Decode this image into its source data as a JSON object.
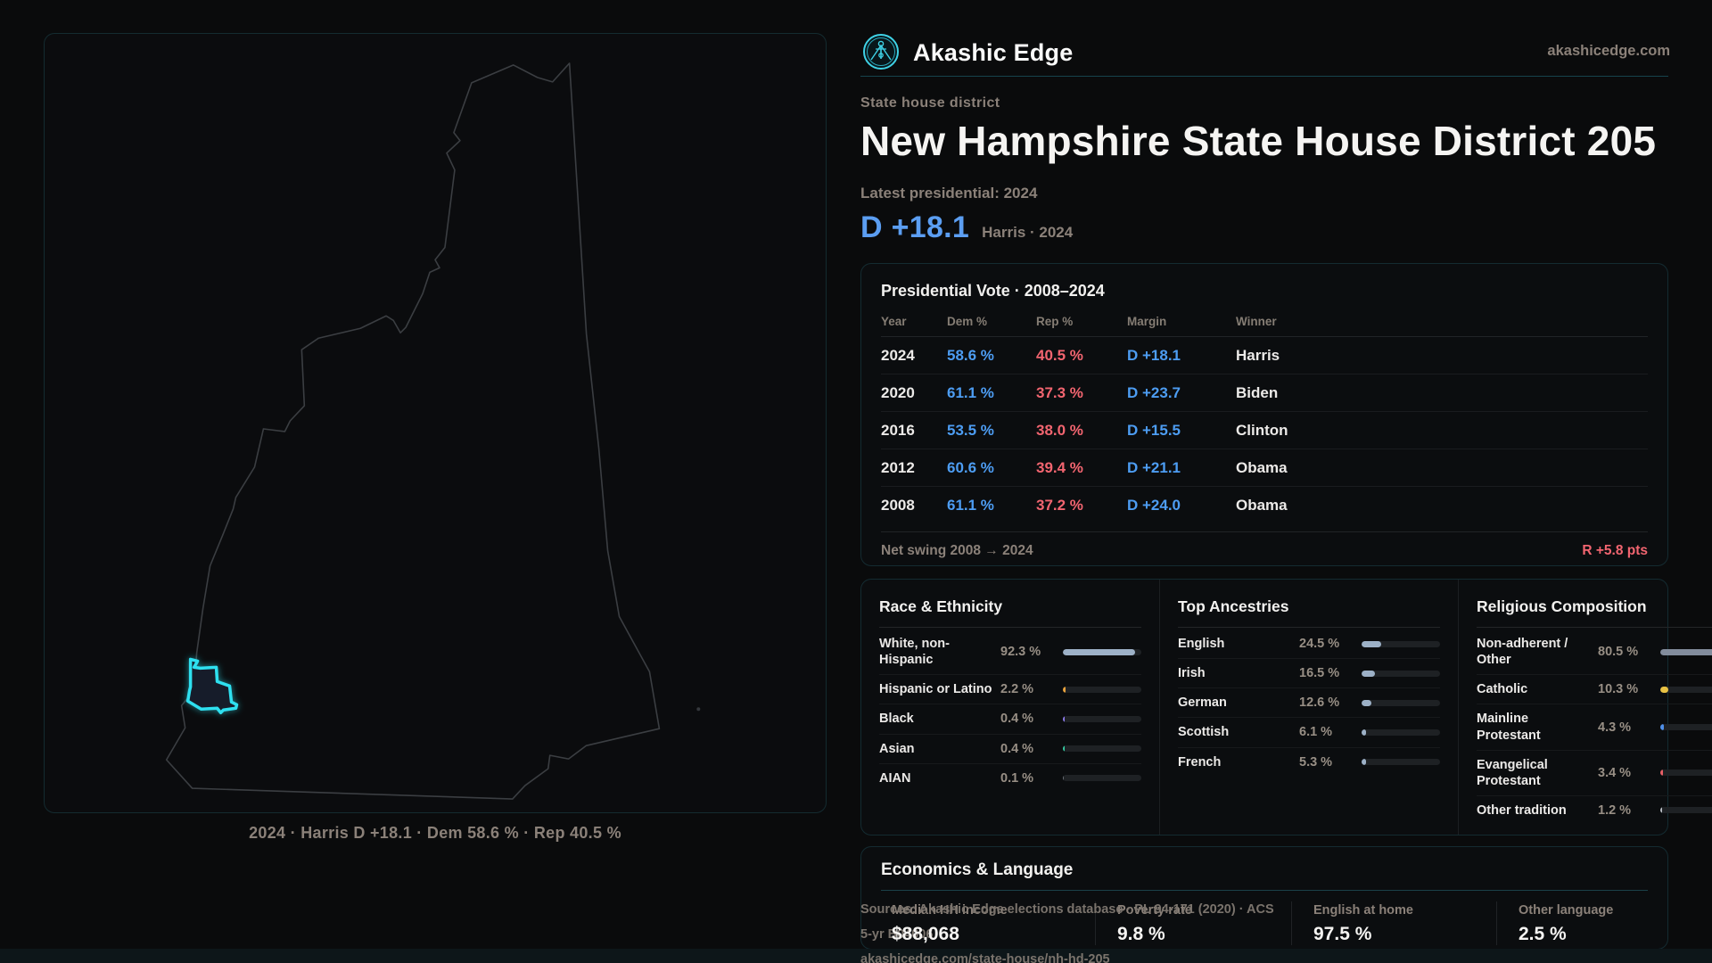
{
  "brand": {
    "name": "Akashic Edge",
    "domain": "akashicedge.com"
  },
  "header": {
    "kicker": "State house district",
    "title": "New Hampshire State House District 205",
    "latest_label": "Latest presidential: 2024",
    "margin_value": "D +18.1",
    "margin_caption": "Harris · 2024",
    "margin_color": "#5b9ef2"
  },
  "map": {
    "caption": "2024 · Harris D +18.1 · Dem 58.6 % · Rep 40.5 %",
    "district_color": "#2ee0f0",
    "outline_color": "#3b3e42"
  },
  "vote_table": {
    "title": "Presidential Vote · 2008–2024",
    "columns": [
      "Year",
      "Dem %",
      "Rep %",
      "Margin",
      "Winner"
    ],
    "rows": [
      {
        "year": "2024",
        "dem": "58.6 %",
        "rep": "40.5 %",
        "margin": "D +18.1",
        "winner": "Harris"
      },
      {
        "year": "2020",
        "dem": "61.1 %",
        "rep": "37.3 %",
        "margin": "D +23.7",
        "winner": "Biden"
      },
      {
        "year": "2016",
        "dem": "53.5 %",
        "rep": "38.0 %",
        "margin": "D +15.5",
        "winner": "Clinton"
      },
      {
        "year": "2012",
        "dem": "60.6 %",
        "rep": "39.4 %",
        "margin": "D +21.1",
        "winner": "Obama"
      },
      {
        "year": "2008",
        "dem": "61.1 %",
        "rep": "37.2 %",
        "margin": "D +24.0",
        "winner": "Obama"
      }
    ],
    "footer_label": "Net swing 2008 → 2024",
    "footer_value": "R +5.8 pts",
    "dem_color": "#4d9df3",
    "rep_color": "#f26570"
  },
  "race": {
    "title": "Race & Ethnicity",
    "rows": [
      {
        "label": "White, non-Hispanic",
        "value": "92.3 %",
        "pct": 92.3,
        "color": "#9db1c7"
      },
      {
        "label": "Hispanic or Latino",
        "value": "2.2 %",
        "pct": 3,
        "color": "#e8a23d"
      },
      {
        "label": "Black",
        "value": "0.4 %",
        "pct": 2,
        "color": "#8b7ae8"
      },
      {
        "label": "Asian",
        "value": "0.4 %",
        "pct": 2,
        "color": "#35c9a0"
      },
      {
        "label": "AIAN",
        "value": "0.1 %",
        "pct": 1,
        "color": "#6a7076"
      }
    ]
  },
  "ancestries": {
    "title": "Top Ancestries",
    "rows": [
      {
        "label": "English",
        "value": "24.5 %",
        "pct": 24.5,
        "color": "#9db1c7"
      },
      {
        "label": "Irish",
        "value": "16.5 %",
        "pct": 16.5,
        "color": "#9db1c7"
      },
      {
        "label": "German",
        "value": "12.6 %",
        "pct": 12.6,
        "color": "#9db1c7"
      },
      {
        "label": "Scottish",
        "value": "6.1 %",
        "pct": 6.1,
        "color": "#9db1c7"
      },
      {
        "label": "French",
        "value": "5.3 %",
        "pct": 5.3,
        "color": "#9db1c7"
      }
    ]
  },
  "religion": {
    "title": "Religious Composition",
    "rows": [
      {
        "label": "Non-adherent / Other",
        "value": "80.5 %",
        "pct": 80.5,
        "color": "#828c9c"
      },
      {
        "label": "Catholic",
        "value": "10.3 %",
        "pct": 10.3,
        "color": "#e8c244"
      },
      {
        "label": "Mainline Protestant",
        "value": "4.3 %",
        "pct": 4.3,
        "color": "#4f8fe8"
      },
      {
        "label": "Evangelical Protestant",
        "value": "3.4 %",
        "pct": 3.4,
        "color": "#e85f66"
      },
      {
        "label": "Other tradition",
        "value": "1.2 %",
        "pct": 2,
        "color": "#b8bcc2"
      }
    ]
  },
  "economics": {
    "title": "Economics & Language",
    "stats": [
      {
        "label": "Median HH income",
        "value": "$88,068"
      },
      {
        "label": "Poverty rate",
        "value": "9.8 %"
      },
      {
        "label": "English at home",
        "value": "97.5 %"
      },
      {
        "label": "Other language",
        "value": "2.5 %"
      }
    ]
  },
  "source": {
    "line1": "Sources: Akashic Edge elections database · PL 94-171 (2020) · ACS 5-yr B04006",
    "line2": "akashicedge.com/state-house/nh-hd-205"
  }
}
